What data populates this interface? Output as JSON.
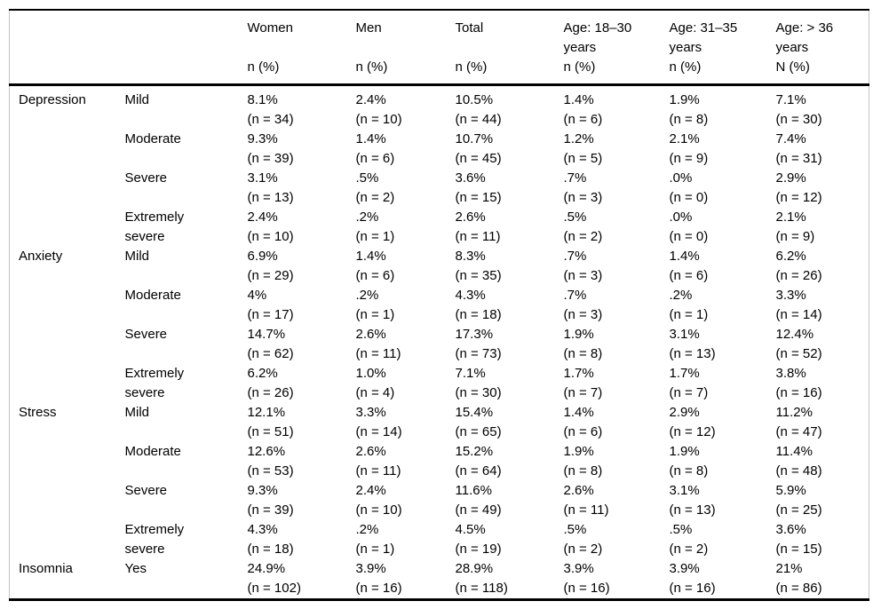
{
  "table": {
    "header": {
      "columns": [
        {
          "title": "Women",
          "sub": "n (%)"
        },
        {
          "title": "Men",
          "sub": "n (%)"
        },
        {
          "title": "Total",
          "sub": "n (%)"
        },
        {
          "title": "Age: 18–30 years",
          "sub": "n (%)"
        },
        {
          "title": "Age: 31–35 years",
          "sub": "n (%)"
        },
        {
          "title": "Age: > 36 years",
          "sub": "N (%)"
        }
      ]
    },
    "sections": [
      {
        "label": "Depression",
        "rows": [
          {
            "severity": "Mild",
            "cells": [
              {
                "pct": "8.1%",
                "n": "(n = 34)"
              },
              {
                "pct": "2.4%",
                "n": "(n = 10)"
              },
              {
                "pct": "10.5%",
                "n": "(n = 44)"
              },
              {
                "pct": "1.4%",
                "n": "(n = 6)"
              },
              {
                "pct": "1.9%",
                "n": "(n = 8)"
              },
              {
                "pct": "7.1%",
                "n": "(n = 30)"
              }
            ]
          },
          {
            "severity": "Moderate",
            "cells": [
              {
                "pct": "9.3%",
                "n": "(n = 39)"
              },
              {
                "pct": "1.4%",
                "n": "(n = 6)"
              },
              {
                "pct": "10.7%",
                "n": "(n = 45)"
              },
              {
                "pct": "1.2%",
                "n": "(n = 5)"
              },
              {
                "pct": "2.1%",
                "n": "(n = 9)"
              },
              {
                "pct": "7.4%",
                "n": "(n = 31)"
              }
            ]
          },
          {
            "severity": "Severe",
            "cells": [
              {
                "pct": "3.1%",
                "n": "(n = 13)"
              },
              {
                "pct": ".5%",
                "n": "(n = 2)"
              },
              {
                "pct": "3.6%",
                "n": "(n = 15)"
              },
              {
                "pct": ".7%",
                "n": "(n = 3)"
              },
              {
                "pct": ".0%",
                "n": "(n = 0)"
              },
              {
                "pct": "2.9%",
                "n": "(n = 12)"
              }
            ]
          },
          {
            "severity": "Extremely severe",
            "cells": [
              {
                "pct": "2.4%",
                "n": "(n = 10)"
              },
              {
                "pct": ".2%",
                "n": "(n = 1)"
              },
              {
                "pct": "2.6%",
                "n": "(n = 11)"
              },
              {
                "pct": ".5%",
                "n": "(n = 2)"
              },
              {
                "pct": ".0%",
                "n": "(n = 0)"
              },
              {
                "pct": "2.1%",
                "n": "(n = 9)"
              }
            ]
          }
        ]
      },
      {
        "label": "Anxiety",
        "rows": [
          {
            "severity": "Mild",
            "cells": [
              {
                "pct": "6.9%",
                "n": "(n = 29)"
              },
              {
                "pct": "1.4%",
                "n": "(n = 6)"
              },
              {
                "pct": "8.3%",
                "n": "(n = 35)"
              },
              {
                "pct": ".7%",
                "n": "(n = 3)"
              },
              {
                "pct": "1.4%",
                "n": "(n = 6)"
              },
              {
                "pct": "6.2%",
                "n": "(n = 26)"
              }
            ]
          },
          {
            "severity": "Moderate",
            "cells": [
              {
                "pct": "4%",
                "n": "(n = 17)"
              },
              {
                "pct": ".2%",
                "n": "(n = 1)"
              },
              {
                "pct": "4.3%",
                "n": "(n = 18)"
              },
              {
                "pct": ".7%",
                "n": "(n = 3)"
              },
              {
                "pct": ".2%",
                "n": "(n = 1)"
              },
              {
                "pct": "3.3%",
                "n": "(n = 14)"
              }
            ]
          },
          {
            "severity": "Severe",
            "cells": [
              {
                "pct": "14.7%",
                "n": "(n = 62)"
              },
              {
                "pct": "2.6%",
                "n": "(n = 11)"
              },
              {
                "pct": "17.3%",
                "n": "(n = 73)"
              },
              {
                "pct": "1.9%",
                "n": "(n = 8)"
              },
              {
                "pct": "3.1%",
                "n": "(n = 13)"
              },
              {
                "pct": "12.4%",
                "n": "(n = 52)"
              }
            ]
          },
          {
            "severity": "Extremely severe",
            "cells": [
              {
                "pct": "6.2%",
                "n": "(n = 26)"
              },
              {
                "pct": "1.0%",
                "n": "(n = 4)"
              },
              {
                "pct": "7.1%",
                "n": "(n = 30)"
              },
              {
                "pct": "1.7%",
                "n": "(n = 7)"
              },
              {
                "pct": "1.7%",
                "n": "(n = 7)"
              },
              {
                "pct": "3.8%",
                "n": "(n = 16)"
              }
            ]
          }
        ]
      },
      {
        "label": "Stress",
        "rows": [
          {
            "severity": "Mild",
            "cells": [
              {
                "pct": "12.1%",
                "n": "(n = 51)"
              },
              {
                "pct": "3.3%",
                "n": "(n = 14)"
              },
              {
                "pct": "15.4%",
                "n": "(n = 65)"
              },
              {
                "pct": "1.4%",
                "n": "(n = 6)"
              },
              {
                "pct": "2.9%",
                "n": "(n = 12)"
              },
              {
                "pct": "11.2%",
                "n": "(n = 47)"
              }
            ]
          },
          {
            "severity": "Moderate",
            "cells": [
              {
                "pct": "12.6%",
                "n": "(n = 53)"
              },
              {
                "pct": "2.6%",
                "n": "(n = 11)"
              },
              {
                "pct": "15.2%",
                "n": "(n = 64)"
              },
              {
                "pct": "1.9%",
                "n": "(n = 8)"
              },
              {
                "pct": "1.9%",
                "n": "(n = 8)"
              },
              {
                "pct": "11.4%",
                "n": "(n = 48)"
              }
            ]
          },
          {
            "severity": "Severe",
            "cells": [
              {
                "pct": "9.3%",
                "n": "(n = 39)"
              },
              {
                "pct": "2.4%",
                "n": "(n = 10)"
              },
              {
                "pct": "11.6%",
                "n": "(n = 49)"
              },
              {
                "pct": "2.6%",
                "n": "(n = 11)"
              },
              {
                "pct": "3.1%",
                "n": "(n = 13)"
              },
              {
                "pct": "5.9%",
                "n": "(n = 25)"
              }
            ]
          },
          {
            "severity": "Extremely severe",
            "cells": [
              {
                "pct": "4.3%",
                "n": "(n = 18)"
              },
              {
                "pct": ".2%",
                "n": "(n = 1)"
              },
              {
                "pct": "4.5%",
                "n": "(n = 19)"
              },
              {
                "pct": ".5%",
                "n": "(n = 2)"
              },
              {
                "pct": ".5%",
                "n": "(n = 2)"
              },
              {
                "pct": "3.6%",
                "n": "(n = 15)"
              }
            ]
          }
        ]
      },
      {
        "label": "Insomnia",
        "rows": [
          {
            "severity": "Yes",
            "cells": [
              {
                "pct": "24.9%",
                "n": "(n = 102)"
              },
              {
                "pct": "3.9%",
                "n": "(n = 16)"
              },
              {
                "pct": "28.9%",
                "n": "(n = 118)"
              },
              {
                "pct": "3.9%",
                "n": "(n = 16)"
              },
              {
                "pct": "3.9%",
                "n": "(n = 16)"
              },
              {
                "pct": "21%",
                "n": "(n = 86)"
              }
            ]
          }
        ]
      }
    ]
  },
  "colors": {
    "text": "#000000",
    "background": "#ffffff",
    "rule": "#000000",
    "side_border": "#c4c4c4"
  }
}
